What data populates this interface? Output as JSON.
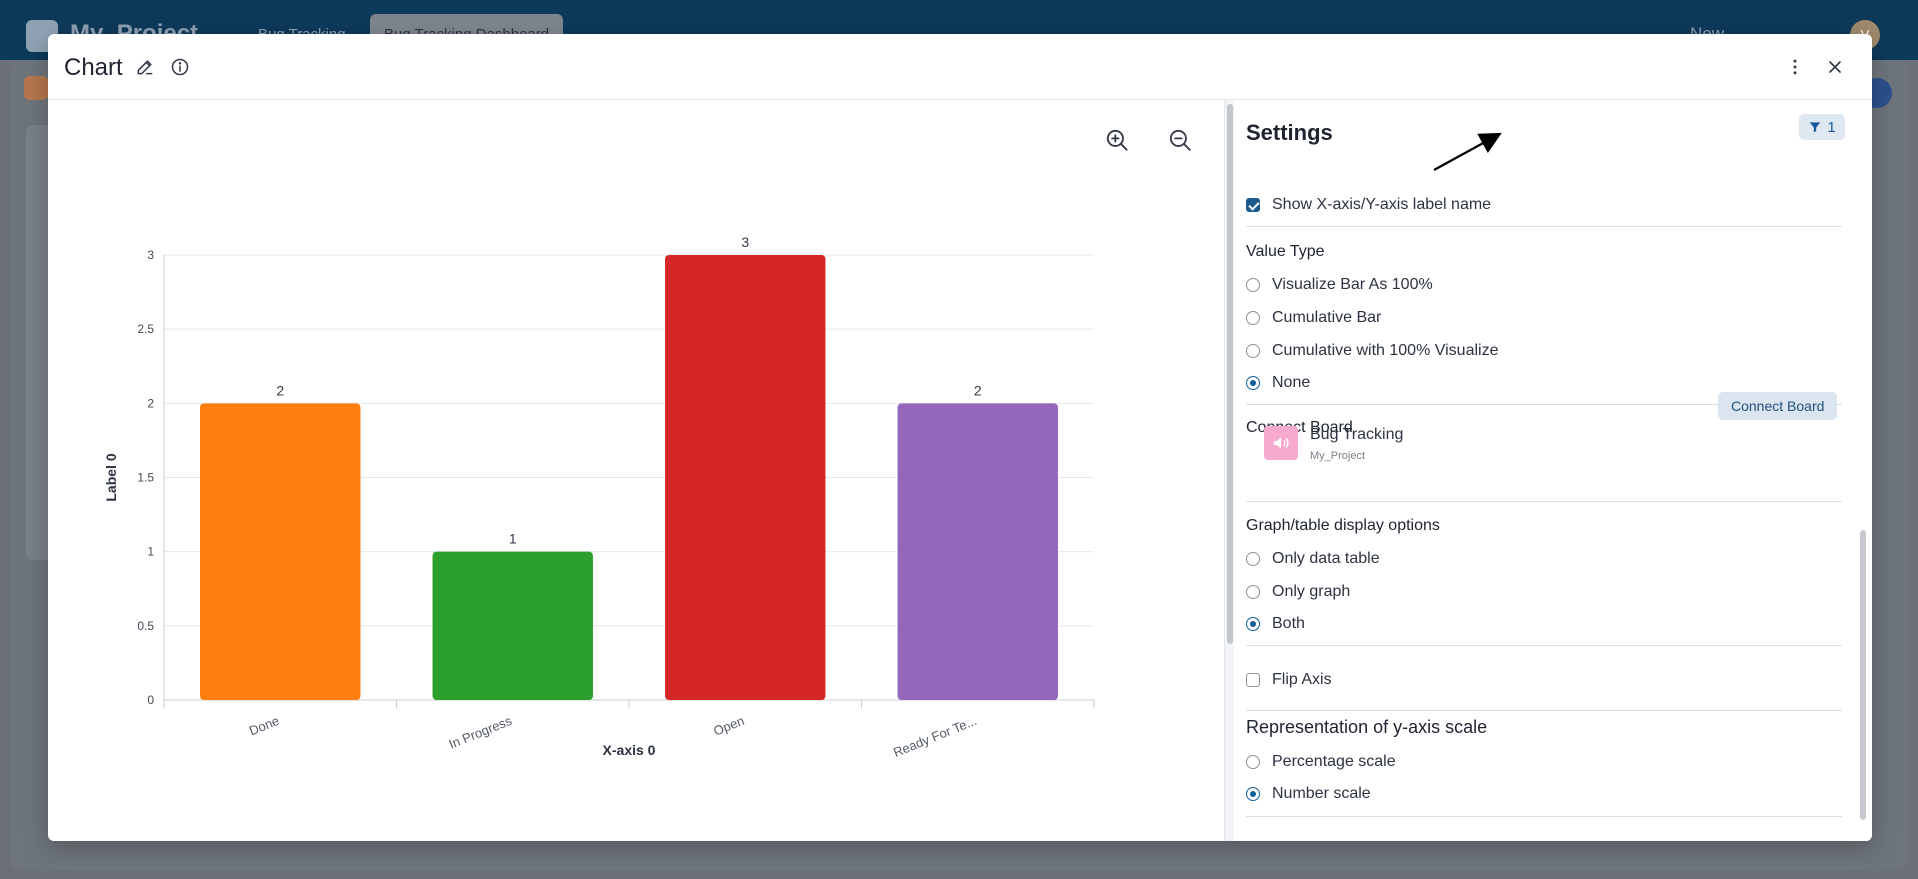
{
  "background": {
    "project_title": "My_Project",
    "tabs": [
      {
        "label": "Bug Tracking",
        "active": false
      },
      {
        "label": "Bug Tracking Dashboard",
        "active": true
      }
    ],
    "new_label": "New",
    "avatar_initial": "V"
  },
  "modal": {
    "title": "Chart",
    "icons": [
      "edit-pencil-icon",
      "info-icon",
      "more-vertical-icon",
      "close-icon"
    ]
  },
  "zoom": {
    "icons": [
      "zoom-in-icon",
      "zoom-out-icon"
    ]
  },
  "chart_data": {
    "type": "bar",
    "categories": [
      "Done",
      "In Progress",
      "Open",
      "Ready For Te..."
    ],
    "values": [
      2,
      1,
      3,
      2
    ],
    "colors": [
      "#ff7f0e",
      "#2ca02c",
      "#d62728",
      "#9467bd"
    ],
    "data_labels": [
      "2",
      "1",
      "3",
      "2"
    ],
    "xlabel": "X-axis 0",
    "ylabel": "Label 0",
    "ylim": [
      0,
      3
    ],
    "y_ticks": [
      0,
      0.5,
      1,
      1.5,
      2,
      2.5,
      3
    ],
    "y_tick_labels": [
      "0",
      "0.5",
      "1",
      "1.5",
      "2",
      "2.5",
      "3"
    ],
    "grid": true
  },
  "settings": {
    "title": "Settings",
    "filter_count": "1",
    "show_axis_label": {
      "label": "Show X-axis/Y-axis label name",
      "checked": true
    },
    "value_type": {
      "title": "Value Type",
      "options": [
        {
          "label": "Visualize Bar As 100%",
          "selected": false
        },
        {
          "label": "Cumulative Bar",
          "selected": false
        },
        {
          "label": "Cumulative with 100% Visualize",
          "selected": false
        },
        {
          "label": "None",
          "selected": true
        }
      ]
    },
    "connect_board": {
      "title": "Connect Board",
      "button_label": "Connect Board",
      "board_name": "Bug Tracking",
      "board_project": "My_Project"
    },
    "display_options": {
      "title": "Graph/table display options",
      "options": [
        {
          "label": "Only data table",
          "selected": false
        },
        {
          "label": "Only graph",
          "selected": false
        },
        {
          "label": "Both",
          "selected": true
        }
      ]
    },
    "flip_axis": {
      "label": "Flip Axis",
      "checked": false
    },
    "y_scale": {
      "title": "Representation of y-axis scale",
      "options": [
        {
          "label": "Percentage scale",
          "selected": false
        },
        {
          "label": "Number scale",
          "selected": true
        }
      ]
    }
  }
}
